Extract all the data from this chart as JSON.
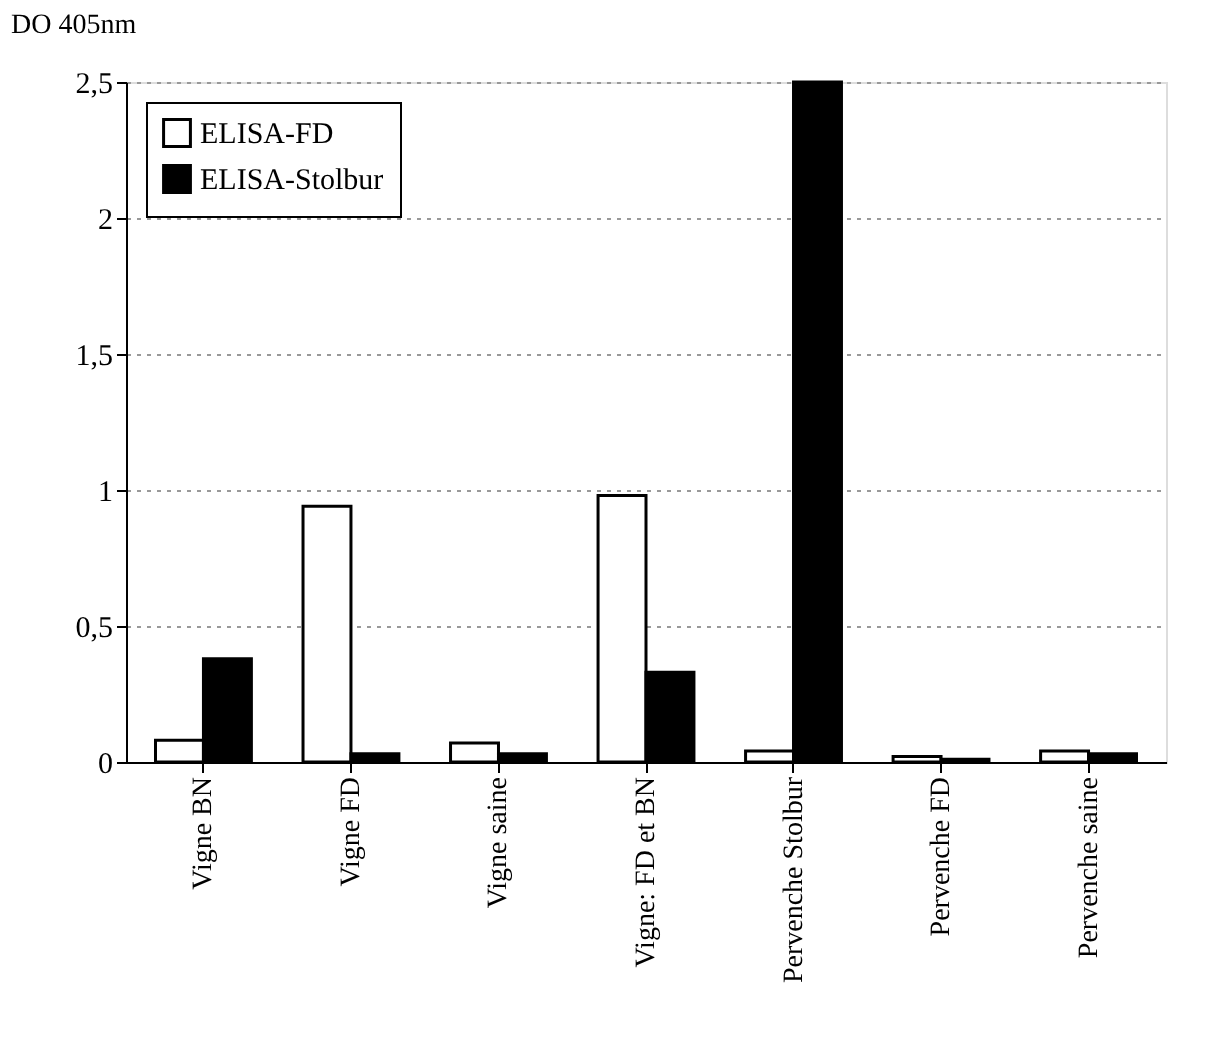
{
  "chart_data": {
    "type": "bar",
    "ylabel": "DO 405nm",
    "categories": [
      "Vigne BN",
      "Vigne FD",
      "Vigne saine",
      "Vigne: FD et BN",
      "Pervenche Stolbur",
      "Pervenche FD",
      "Pervenche saine"
    ],
    "series": [
      {
        "name": "ELISA-FD",
        "color": "#ffffff",
        "values": [
          0.08,
          0.94,
          0.07,
          0.98,
          0.04,
          0.02,
          0.04
        ]
      },
      {
        "name": "ELISA-Stolbur",
        "color": "#000000",
        "values": [
          0.38,
          0.03,
          0.03,
          0.33,
          2.5,
          0.01,
          0.03
        ]
      }
    ],
    "ylim": [
      0,
      2.5
    ],
    "yticks": [
      0,
      {
        "value": 0.5,
        "label": "0,5"
      },
      1,
      {
        "value": 1.5,
        "label": "1,5"
      },
      2,
      {
        "value": 2.5,
        "label": "2,5"
      }
    ],
    "grid": "y",
    "legend": "top left"
  }
}
